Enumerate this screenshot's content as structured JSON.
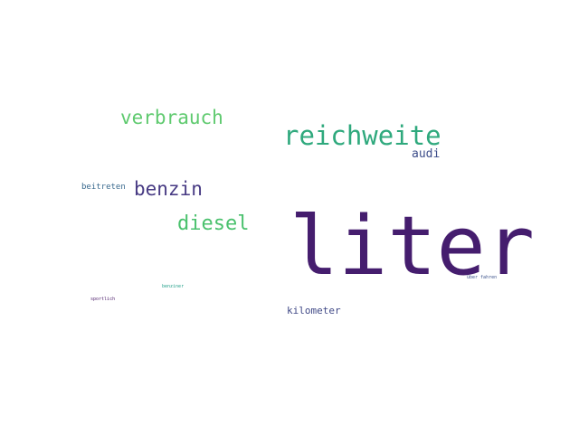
{
  "words": [
    {
      "id": "liter",
      "text": "liter",
      "color": "#451d6e"
    },
    {
      "id": "reichweite",
      "text": "reichweite",
      "color": "#2fa97d"
    },
    {
      "id": "verbrauch",
      "text": "verbrauch",
      "color": "#5fca6f"
    },
    {
      "id": "benzin",
      "text": "benzin",
      "color": "#473a83"
    },
    {
      "id": "diesel",
      "text": "diesel",
      "color": "#4ac16d"
    },
    {
      "id": "audi",
      "text": "audi",
      "color": "#3d4d8a"
    },
    {
      "id": "kilometer",
      "text": "kilometer",
      "color": "#414a87"
    },
    {
      "id": "beitreten",
      "text": "beitreten",
      "color": "#3a6a8e"
    },
    {
      "id": "benziner",
      "text": "benziner",
      "color": "#23a08a"
    },
    {
      "id": "ueberfahren",
      "text": "über fahren",
      "color": "#3b528b"
    },
    {
      "id": "sportlich",
      "text": "sportlich",
      "color": "#4b1b6a"
    }
  ]
}
